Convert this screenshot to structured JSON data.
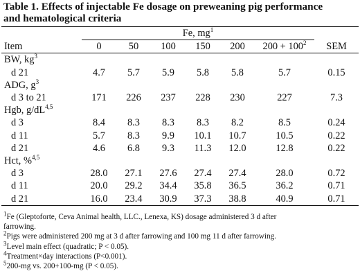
{
  "title_line1": "Table 1. Effects of injectable Fe dosage on preweaning pig performance",
  "title_line2": "and hematological criteria",
  "spanning_header": {
    "label": "Fe, mg",
    "sup": "1"
  },
  "columns": {
    "item": "Item",
    "c0": "0",
    "c50": "50",
    "c100": "100",
    "c150": "150",
    "c200": "200",
    "c200_100": "200 + 100",
    "c200_100_sup": "2",
    "sem": "SEM"
  },
  "sections": [
    {
      "heading": "BW, kg",
      "heading_sup": "3",
      "rows": [
        {
          "label": "d 21",
          "values": [
            "4.7",
            "5.7",
            "5.9",
            "5.8",
            "5.8",
            "5.7",
            "0.15"
          ]
        }
      ]
    },
    {
      "heading": "ADG, g",
      "heading_sup": "3",
      "rows": [
        {
          "label": "d 3 to 21",
          "values": [
            "171",
            "226",
            "237",
            "228",
            "230",
            "227",
            "7.3"
          ]
        }
      ]
    },
    {
      "heading": "Hgb, g/dL",
      "heading_sup": "4,5",
      "rows": [
        {
          "label": "d 3",
          "values": [
            "8.4",
            "8.3",
            "8.3",
            "8.3",
            "8.2",
            "8.5",
            "0.24"
          ]
        },
        {
          "label": "d 11",
          "values": [
            "5.7",
            "8.3",
            "9.9",
            "10.1",
            "10.7",
            "10.5",
            "0.22"
          ]
        },
        {
          "label": "d 21",
          "values": [
            "4.6",
            "6.8",
            "9.3",
            "11.3",
            "12.0",
            "12.8",
            "0.22"
          ]
        }
      ]
    },
    {
      "heading": "Hct, %",
      "heading_sup": "4,5",
      "rows": [
        {
          "label": "d 3",
          "values": [
            "28.0",
            "27.1",
            "27.6",
            "27.4",
            "27.4",
            "28.0",
            "0.72"
          ]
        },
        {
          "label": "d 11",
          "values": [
            "20.0",
            "29.2",
            "34.4",
            "35.8",
            "36.5",
            "36.2",
            "0.71"
          ]
        },
        {
          "label": "d 21",
          "values": [
            "16.0",
            "23.4",
            "30.9",
            "37.3",
            "38.8",
            "40.9",
            "0.71"
          ]
        }
      ]
    }
  ],
  "footnotes": {
    "fn1_sup": "1",
    "fn1_line1": "Fe (Gleptoforte, Ceva Animal health, LLC., Lenexa, KS) dosage administered 3 d after",
    "fn1_line2": "farrowing.",
    "fn2_sup": "2",
    "fn2": "Pigs were administered 200 mg at 3 d after farrowing and 100 mg 11 d after farrowing.",
    "fn3_sup": "3",
    "fn3": "Level main effect (quadratic; P < 0.05).",
    "fn4_sup": "4",
    "fn4": "Treatment×day interactions (P<0.001).",
    "fn5_sup": "5",
    "fn5": "200-mg vs. 200+100-mg (P < 0.05)."
  }
}
